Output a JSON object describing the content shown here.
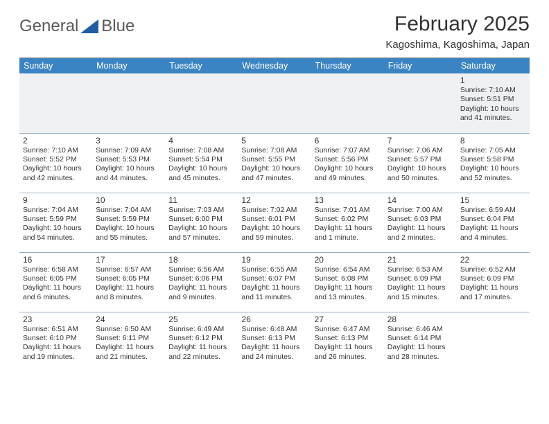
{
  "brand": {
    "part1": "General",
    "part2": "Blue",
    "tri_color": "#1f5fa0"
  },
  "title": "February 2025",
  "subtitle": "Kagoshima, Kagoshima, Japan",
  "header_bg": "#3b84c4",
  "day_headers": [
    "Sunday",
    "Monday",
    "Tuesday",
    "Wednesday",
    "Thursday",
    "Friday",
    "Saturday"
  ],
  "weeks": [
    [
      null,
      null,
      null,
      null,
      null,
      null,
      {
        "n": "1",
        "lines": [
          "Sunrise: 7:10 AM",
          "Sunset: 5:51 PM",
          "Daylight: 10 hours",
          "and 41 minutes."
        ]
      }
    ],
    [
      {
        "n": "2",
        "lines": [
          "Sunrise: 7:10 AM",
          "Sunset: 5:52 PM",
          "Daylight: 10 hours",
          "and 42 minutes."
        ]
      },
      {
        "n": "3",
        "lines": [
          "Sunrise: 7:09 AM",
          "Sunset: 5:53 PM",
          "Daylight: 10 hours",
          "and 44 minutes."
        ]
      },
      {
        "n": "4",
        "lines": [
          "Sunrise: 7:08 AM",
          "Sunset: 5:54 PM",
          "Daylight: 10 hours",
          "and 45 minutes."
        ]
      },
      {
        "n": "5",
        "lines": [
          "Sunrise: 7:08 AM",
          "Sunset: 5:55 PM",
          "Daylight: 10 hours",
          "and 47 minutes."
        ]
      },
      {
        "n": "6",
        "lines": [
          "Sunrise: 7:07 AM",
          "Sunset: 5:56 PM",
          "Daylight: 10 hours",
          "and 49 minutes."
        ]
      },
      {
        "n": "7",
        "lines": [
          "Sunrise: 7:06 AM",
          "Sunset: 5:57 PM",
          "Daylight: 10 hours",
          "and 50 minutes."
        ]
      },
      {
        "n": "8",
        "lines": [
          "Sunrise: 7:05 AM",
          "Sunset: 5:58 PM",
          "Daylight: 10 hours",
          "and 52 minutes."
        ]
      }
    ],
    [
      {
        "n": "9",
        "lines": [
          "Sunrise: 7:04 AM",
          "Sunset: 5:59 PM",
          "Daylight: 10 hours",
          "and 54 minutes."
        ]
      },
      {
        "n": "10",
        "lines": [
          "Sunrise: 7:04 AM",
          "Sunset: 5:59 PM",
          "Daylight: 10 hours",
          "and 55 minutes."
        ]
      },
      {
        "n": "11",
        "lines": [
          "Sunrise: 7:03 AM",
          "Sunset: 6:00 PM",
          "Daylight: 10 hours",
          "and 57 minutes."
        ]
      },
      {
        "n": "12",
        "lines": [
          "Sunrise: 7:02 AM",
          "Sunset: 6:01 PM",
          "Daylight: 10 hours",
          "and 59 minutes."
        ]
      },
      {
        "n": "13",
        "lines": [
          "Sunrise: 7:01 AM",
          "Sunset: 6:02 PM",
          "Daylight: 11 hours",
          "and 1 minute."
        ]
      },
      {
        "n": "14",
        "lines": [
          "Sunrise: 7:00 AM",
          "Sunset: 6:03 PM",
          "Daylight: 11 hours",
          "and 2 minutes."
        ]
      },
      {
        "n": "15",
        "lines": [
          "Sunrise: 6:59 AM",
          "Sunset: 6:04 PM",
          "Daylight: 11 hours",
          "and 4 minutes."
        ]
      }
    ],
    [
      {
        "n": "16",
        "lines": [
          "Sunrise: 6:58 AM",
          "Sunset: 6:05 PM",
          "Daylight: 11 hours",
          "and 6 minutes."
        ]
      },
      {
        "n": "17",
        "lines": [
          "Sunrise: 6:57 AM",
          "Sunset: 6:05 PM",
          "Daylight: 11 hours",
          "and 8 minutes."
        ]
      },
      {
        "n": "18",
        "lines": [
          "Sunrise: 6:56 AM",
          "Sunset: 6:06 PM",
          "Daylight: 11 hours",
          "and 9 minutes."
        ]
      },
      {
        "n": "19",
        "lines": [
          "Sunrise: 6:55 AM",
          "Sunset: 6:07 PM",
          "Daylight: 11 hours",
          "and 11 minutes."
        ]
      },
      {
        "n": "20",
        "lines": [
          "Sunrise: 6:54 AM",
          "Sunset: 6:08 PM",
          "Daylight: 11 hours",
          "and 13 minutes."
        ]
      },
      {
        "n": "21",
        "lines": [
          "Sunrise: 6:53 AM",
          "Sunset: 6:09 PM",
          "Daylight: 11 hours",
          "and 15 minutes."
        ]
      },
      {
        "n": "22",
        "lines": [
          "Sunrise: 6:52 AM",
          "Sunset: 6:09 PM",
          "Daylight: 11 hours",
          "and 17 minutes."
        ]
      }
    ],
    [
      {
        "n": "23",
        "lines": [
          "Sunrise: 6:51 AM",
          "Sunset: 6:10 PM",
          "Daylight: 11 hours",
          "and 19 minutes."
        ]
      },
      {
        "n": "24",
        "lines": [
          "Sunrise: 6:50 AM",
          "Sunset: 6:11 PM",
          "Daylight: 11 hours",
          "and 21 minutes."
        ]
      },
      {
        "n": "25",
        "lines": [
          "Sunrise: 6:49 AM",
          "Sunset: 6:12 PM",
          "Daylight: 11 hours",
          "and 22 minutes."
        ]
      },
      {
        "n": "26",
        "lines": [
          "Sunrise: 6:48 AM",
          "Sunset: 6:13 PM",
          "Daylight: 11 hours",
          "and 24 minutes."
        ]
      },
      {
        "n": "27",
        "lines": [
          "Sunrise: 6:47 AM",
          "Sunset: 6:13 PM",
          "Daylight: 11 hours",
          "and 26 minutes."
        ]
      },
      {
        "n": "28",
        "lines": [
          "Sunrise: 6:46 AM",
          "Sunset: 6:14 PM",
          "Daylight: 11 hours",
          "and 28 minutes."
        ]
      },
      null
    ]
  ]
}
